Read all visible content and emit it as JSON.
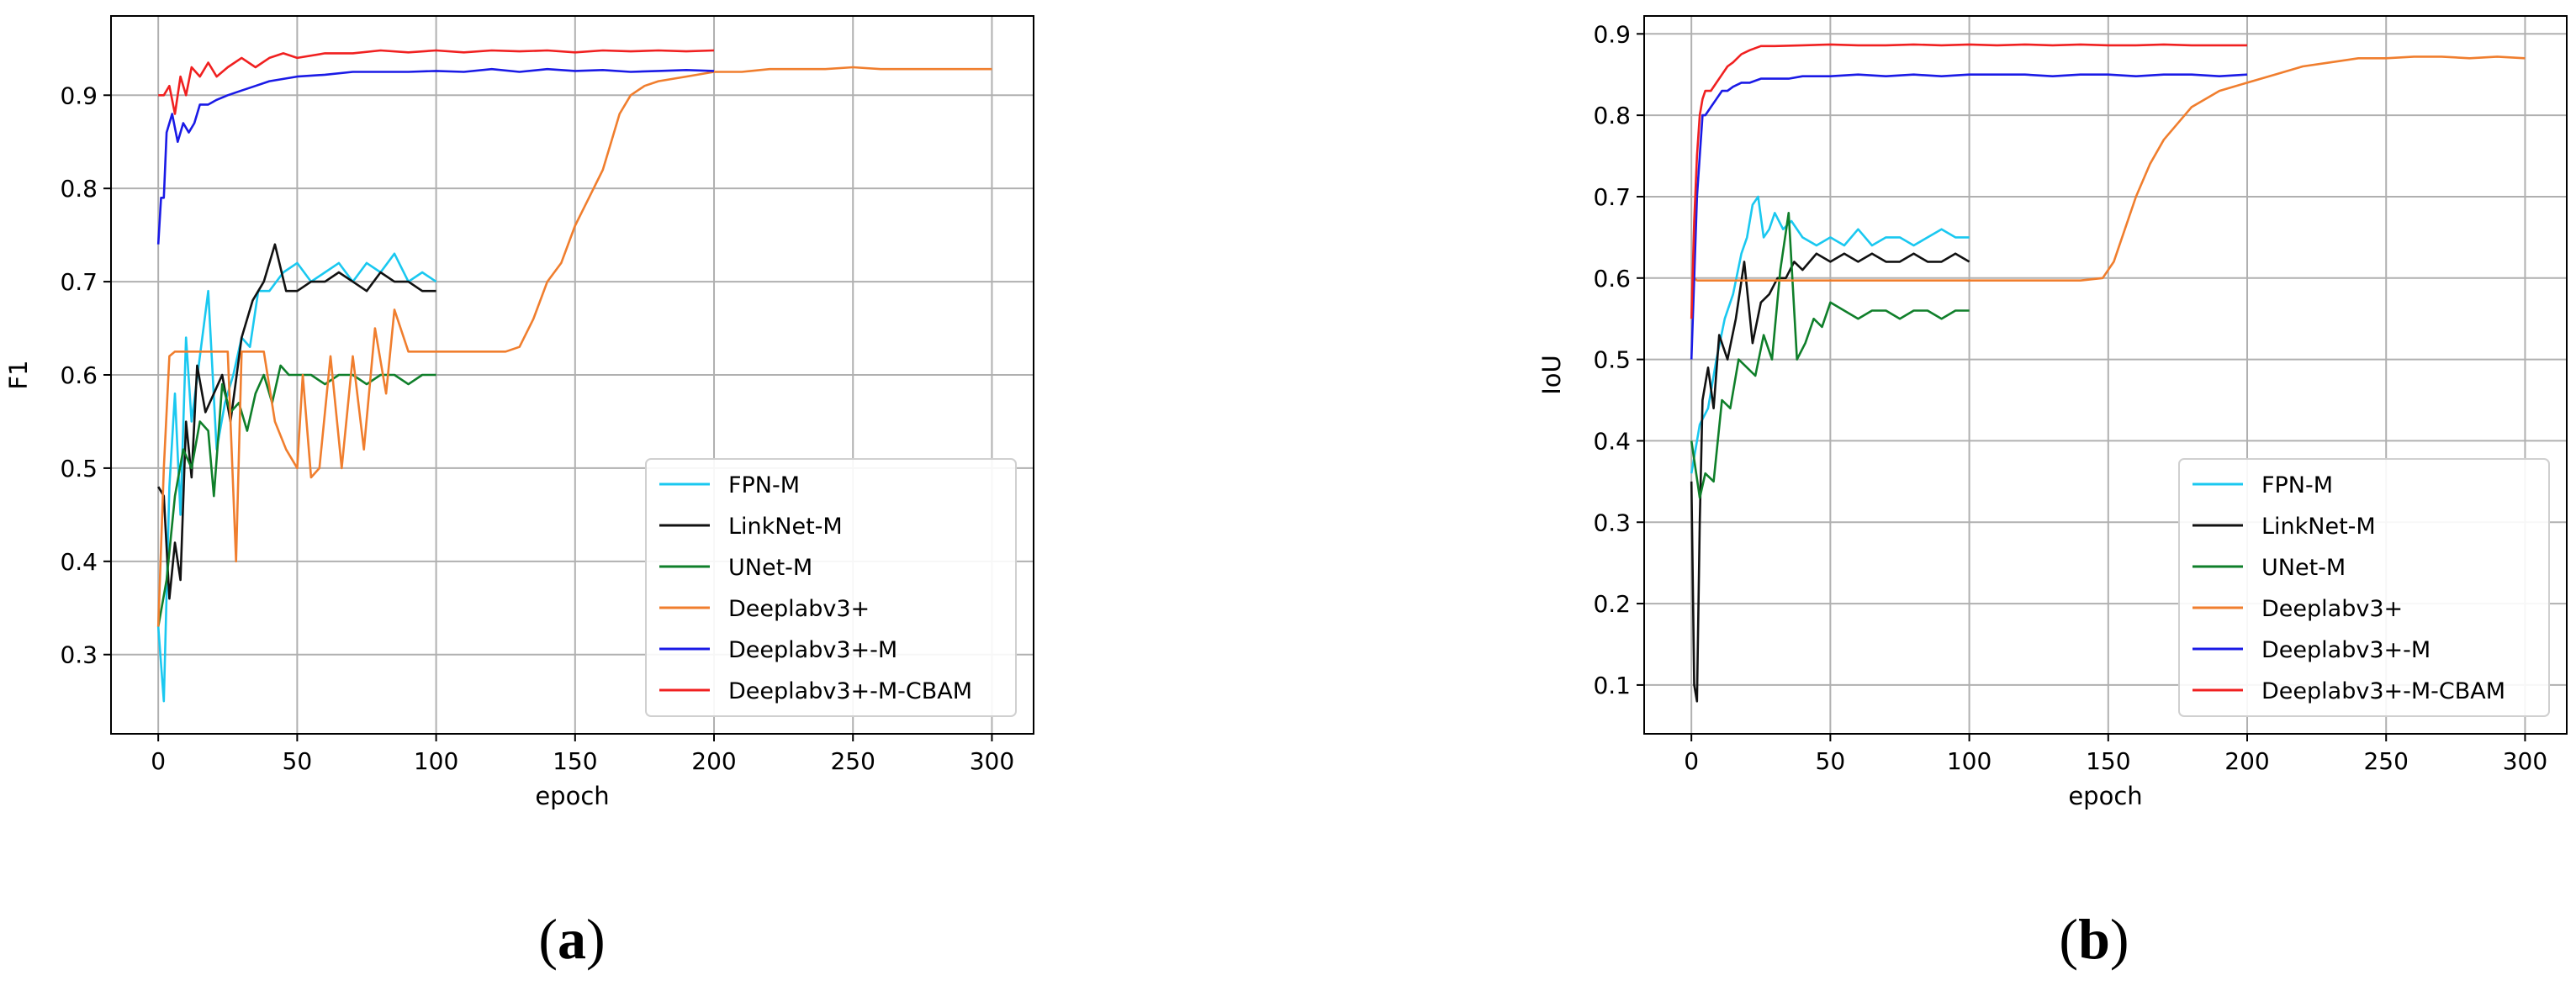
{
  "figure": {
    "captions": [
      "(a)",
      "(b)"
    ]
  },
  "colors": {
    "FPN-M": "#1ac8f0",
    "LinkNet-M": "#111111",
    "UNet-M": "#0f7f2a",
    "Deeplabv3+": "#f07e2e",
    "Deeplabv3+-M": "#1a1ae6",
    "Deeplabv3+-M-CBAM": "#f02020"
  },
  "chart_data": [
    {
      "type": "line",
      "xlabel": "epoch",
      "ylabel": "F1",
      "xlim": [
        -17,
        315
      ],
      "ylim": [
        0.215,
        0.985
      ],
      "xticks": [
        0,
        50,
        100,
        150,
        200,
        250,
        300
      ],
      "yticks": [
        0.3,
        0.4,
        0.5,
        0.6,
        0.7,
        0.8,
        0.9
      ],
      "grid": true,
      "legend": "bottom-right",
      "series": [
        {
          "name": "FPN-M",
          "x": [
            0,
            2,
            4,
            6,
            8,
            10,
            12,
            15,
            18,
            21,
            24,
            27,
            30,
            33,
            36,
            40,
            45,
            50,
            55,
            60,
            65,
            70,
            75,
            80,
            85,
            90,
            95,
            100
          ],
          "y": [
            0.33,
            0.25,
            0.48,
            0.58,
            0.45,
            0.64,
            0.55,
            0.62,
            0.69,
            0.52,
            0.57,
            0.6,
            0.64,
            0.63,
            0.69,
            0.69,
            0.71,
            0.72,
            0.7,
            0.71,
            0.72,
            0.7,
            0.72,
            0.71,
            0.73,
            0.7,
            0.71,
            0.7
          ]
        },
        {
          "name": "LinkNet-M",
          "x": [
            0,
            2,
            4,
            6,
            8,
            10,
            12,
            14,
            17,
            20,
            23,
            26,
            30,
            34,
            38,
            42,
            46,
            50,
            55,
            60,
            65,
            70,
            75,
            80,
            85,
            90,
            95,
            100
          ],
          "y": [
            0.48,
            0.47,
            0.36,
            0.42,
            0.38,
            0.55,
            0.49,
            0.61,
            0.56,
            0.58,
            0.6,
            0.55,
            0.64,
            0.68,
            0.7,
            0.74,
            0.69,
            0.69,
            0.7,
            0.7,
            0.71,
            0.7,
            0.69,
            0.71,
            0.7,
            0.7,
            0.69,
            0.69
          ]
        },
        {
          "name": "UNet-M",
          "x": [
            0,
            3,
            6,
            9,
            12,
            15,
            18,
            20,
            23,
            26,
            29,
            32,
            35,
            38,
            41,
            44,
            47,
            50,
            55,
            60,
            65,
            70,
            75,
            80,
            85,
            90,
            95,
            100
          ],
          "y": [
            0.33,
            0.38,
            0.47,
            0.52,
            0.5,
            0.55,
            0.54,
            0.47,
            0.59,
            0.56,
            0.57,
            0.54,
            0.58,
            0.6,
            0.57,
            0.61,
            0.6,
            0.6,
            0.6,
            0.59,
            0.6,
            0.6,
            0.59,
            0.6,
            0.6,
            0.59,
            0.6,
            0.6
          ]
        },
        {
          "name": "Deeplabv3+",
          "x": [
            0,
            2,
            4,
            6,
            10,
            15,
            20,
            25,
            28,
            30,
            32,
            35,
            38,
            42,
            46,
            50,
            52,
            55,
            58,
            62,
            66,
            70,
            74,
            78,
            82,
            85,
            90,
            100,
            110,
            120,
            125,
            130,
            135,
            140,
            145,
            150,
            155,
            160,
            163,
            166,
            170,
            175,
            180,
            190,
            200,
            210,
            220,
            230,
            240,
            250,
            260,
            270,
            280,
            290,
            300
          ],
          "y": [
            0.33,
            0.5,
            0.62,
            0.625,
            0.625,
            0.625,
            0.625,
            0.625,
            0.4,
            0.625,
            0.625,
            0.625,
            0.625,
            0.55,
            0.52,
            0.5,
            0.6,
            0.49,
            0.5,
            0.62,
            0.5,
            0.62,
            0.52,
            0.65,
            0.58,
            0.67,
            0.625,
            0.625,
            0.625,
            0.625,
            0.625,
            0.63,
            0.66,
            0.7,
            0.72,
            0.76,
            0.79,
            0.82,
            0.85,
            0.88,
            0.9,
            0.91,
            0.915,
            0.92,
            0.925,
            0.925,
            0.928,
            0.928,
            0.928,
            0.93,
            0.928,
            0.928,
            0.928,
            0.928,
            0.928
          ]
        },
        {
          "name": "Deeplabv3+-M",
          "x": [
            0,
            1,
            2,
            3,
            5,
            7,
            9,
            11,
            13,
            15,
            18,
            21,
            25,
            30,
            35,
            40,
            50,
            60,
            70,
            80,
            90,
            100,
            110,
            120,
            130,
            140,
            150,
            160,
            170,
            180,
            190,
            200
          ],
          "y": [
            0.74,
            0.79,
            0.79,
            0.86,
            0.88,
            0.85,
            0.87,
            0.86,
            0.87,
            0.89,
            0.89,
            0.895,
            0.9,
            0.905,
            0.91,
            0.915,
            0.92,
            0.922,
            0.925,
            0.925,
            0.925,
            0.926,
            0.925,
            0.928,
            0.925,
            0.928,
            0.926,
            0.927,
            0.925,
            0.926,
            0.927,
            0.926
          ]
        },
        {
          "name": "Deeplabv3+-M-CBAM",
          "x": [
            0,
            2,
            4,
            6,
            8,
            10,
            12,
            15,
            18,
            21,
            25,
            30,
            35,
            40,
            45,
            50,
            60,
            70,
            80,
            90,
            100,
            110,
            120,
            130,
            140,
            150,
            160,
            170,
            180,
            190,
            200
          ],
          "y": [
            0.9,
            0.9,
            0.91,
            0.88,
            0.92,
            0.9,
            0.93,
            0.92,
            0.935,
            0.92,
            0.93,
            0.94,
            0.93,
            0.94,
            0.945,
            0.94,
            0.945,
            0.945,
            0.948,
            0.946,
            0.948,
            0.946,
            0.948,
            0.947,
            0.948,
            0.946,
            0.948,
            0.947,
            0.948,
            0.947,
            0.948
          ]
        }
      ]
    },
    {
      "type": "line",
      "xlabel": "epoch",
      "ylabel": "IoU",
      "xlim": [
        -17,
        315
      ],
      "ylim": [
        0.04,
        0.922
      ],
      "xticks": [
        0,
        50,
        100,
        150,
        200,
        250,
        300
      ],
      "yticks": [
        0.1,
        0.2,
        0.3,
        0.4,
        0.5,
        0.6,
        0.7,
        0.8,
        0.9
      ],
      "grid": true,
      "legend": "bottom-right",
      "series": [
        {
          "name": "FPN-M",
          "x": [
            0,
            3,
            6,
            9,
            12,
            15,
            18,
            20,
            22,
            24,
            26,
            28,
            30,
            33,
            36,
            40,
            45,
            50,
            55,
            60,
            65,
            70,
            75,
            80,
            85,
            90,
            95,
            100
          ],
          "y": [
            0.36,
            0.42,
            0.44,
            0.5,
            0.55,
            0.58,
            0.63,
            0.65,
            0.69,
            0.7,
            0.65,
            0.66,
            0.68,
            0.66,
            0.67,
            0.65,
            0.64,
            0.65,
            0.64,
            0.66,
            0.64,
            0.65,
            0.65,
            0.64,
            0.65,
            0.66,
            0.65,
            0.65
          ]
        },
        {
          "name": "LinkNet-M",
          "x": [
            0,
            1,
            2,
            3,
            4,
            6,
            8,
            10,
            13,
            16,
            19,
            22,
            25,
            28,
            31,
            34,
            37,
            40,
            45,
            50,
            55,
            60,
            65,
            70,
            75,
            80,
            85,
            90,
            95,
            100
          ],
          "y": [
            0.35,
            0.1,
            0.08,
            0.3,
            0.45,
            0.49,
            0.44,
            0.53,
            0.5,
            0.55,
            0.62,
            0.52,
            0.57,
            0.58,
            0.6,
            0.6,
            0.62,
            0.61,
            0.63,
            0.62,
            0.63,
            0.62,
            0.63,
            0.62,
            0.62,
            0.63,
            0.62,
            0.62,
            0.63,
            0.62
          ]
        },
        {
          "name": "UNet-M",
          "x": [
            0,
            3,
            5,
            8,
            11,
            14,
            17,
            20,
            23,
            26,
            29,
            32,
            35,
            38,
            41,
            44,
            47,
            50,
            55,
            60,
            65,
            70,
            75,
            80,
            85,
            90,
            95,
            100
          ],
          "y": [
            0.4,
            0.33,
            0.36,
            0.35,
            0.45,
            0.44,
            0.5,
            0.49,
            0.48,
            0.53,
            0.5,
            0.61,
            0.68,
            0.5,
            0.52,
            0.55,
            0.54,
            0.57,
            0.56,
            0.55,
            0.56,
            0.56,
            0.55,
            0.56,
            0.56,
            0.55,
            0.56,
            0.56
          ]
        },
        {
          "name": "Deeplabv3+",
          "x": [
            0,
            1,
            2,
            4,
            6,
            10,
            20,
            40,
            60,
            80,
            100,
            120,
            140,
            148,
            152,
            156,
            160,
            165,
            170,
            175,
            180,
            185,
            190,
            195,
            200,
            210,
            220,
            230,
            240,
            250,
            260,
            270,
            280,
            290,
            300
          ],
          "y": [
            0.55,
            0.6,
            0.597,
            0.597,
            0.597,
            0.597,
            0.597,
            0.597,
            0.597,
            0.597,
            0.597,
            0.597,
            0.597,
            0.6,
            0.62,
            0.66,
            0.7,
            0.74,
            0.77,
            0.79,
            0.81,
            0.82,
            0.83,
            0.835,
            0.84,
            0.85,
            0.86,
            0.865,
            0.87,
            0.87,
            0.872,
            0.872,
            0.87,
            0.872,
            0.87
          ]
        },
        {
          "name": "Deeplabv3+-M",
          "x": [
            0,
            1,
            2,
            3,
            4,
            5,
            7,
            9,
            11,
            13,
            15,
            18,
            21,
            25,
            30,
            35,
            40,
            50,
            60,
            70,
            80,
            90,
            100,
            110,
            120,
            130,
            140,
            150,
            160,
            170,
            180,
            190,
            200
          ],
          "y": [
            0.5,
            0.6,
            0.7,
            0.75,
            0.8,
            0.8,
            0.81,
            0.82,
            0.83,
            0.83,
            0.835,
            0.84,
            0.84,
            0.845,
            0.845,
            0.845,
            0.848,
            0.848,
            0.85,
            0.848,
            0.85,
            0.848,
            0.85,
            0.85,
            0.85,
            0.848,
            0.85,
            0.85,
            0.848,
            0.85,
            0.85,
            0.848,
            0.85
          ]
        },
        {
          "name": "Deeplabv3+-M-CBAM",
          "x": [
            0,
            1,
            2,
            3,
            4,
            5,
            7,
            9,
            11,
            13,
            15,
            18,
            21,
            25,
            30,
            40,
            50,
            60,
            70,
            80,
            90,
            100,
            110,
            120,
            130,
            140,
            150,
            160,
            170,
            180,
            190,
            200
          ],
          "y": [
            0.55,
            0.67,
            0.75,
            0.8,
            0.82,
            0.83,
            0.83,
            0.84,
            0.85,
            0.86,
            0.865,
            0.875,
            0.88,
            0.885,
            0.885,
            0.886,
            0.887,
            0.886,
            0.886,
            0.887,
            0.886,
            0.887,
            0.886,
            0.887,
            0.886,
            0.887,
            0.886,
            0.886,
            0.887,
            0.886,
            0.886,
            0.886
          ]
        }
      ]
    }
  ]
}
